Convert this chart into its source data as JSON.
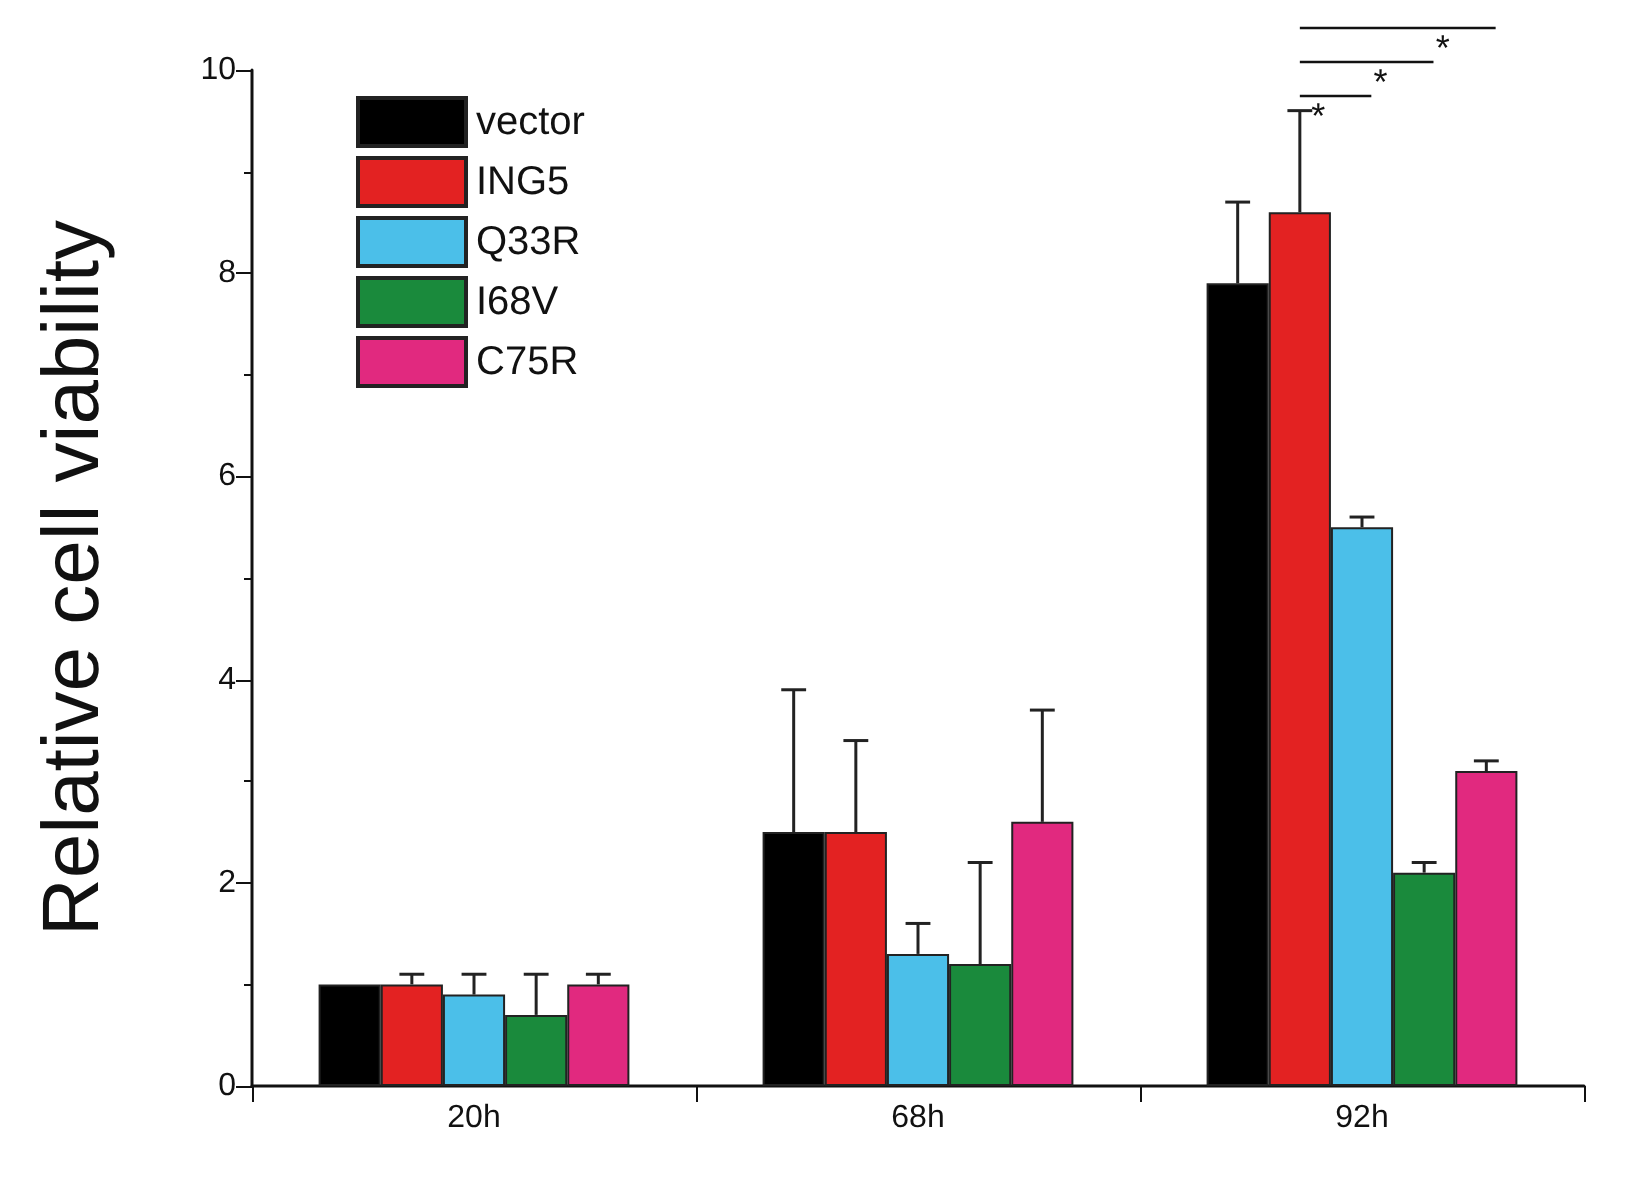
{
  "chart_data": {
    "type": "bar",
    "ylabel": "Relative cell viability",
    "categories": [
      "20h",
      "68h",
      "92h"
    ],
    "series": [
      {
        "name": "vector",
        "color": "#000000",
        "values": [
          1.0,
          2.5,
          7.9
        ],
        "errors": [
          null,
          [
            2.5,
            3.9
          ],
          [
            7.9,
            8.7
          ]
        ]
      },
      {
        "name": "ING5",
        "color": "#e32222",
        "values": [
          1.0,
          2.5,
          8.6
        ],
        "errors": [
          [
            1.0,
            1.1
          ],
          [
            2.5,
            3.4
          ],
          [
            8.6,
            9.6
          ]
        ]
      },
      {
        "name": "Q33R",
        "color": "#4bbfe9",
        "values": [
          0.9,
          1.3,
          5.5
        ],
        "errors": [
          [
            0.9,
            1.1
          ],
          [
            1.3,
            1.6
          ],
          [
            5.5,
            5.6
          ]
        ]
      },
      {
        "name": "I68V",
        "color": "#1a8a3c",
        "values": [
          0.7,
          1.2,
          2.1
        ],
        "errors": [
          [
            0.7,
            1.1
          ],
          [
            1.2,
            2.2
          ],
          [
            2.1,
            2.2
          ]
        ]
      },
      {
        "name": "C75R",
        "color": "#e1297f",
        "values": [
          1.0,
          2.6,
          3.1
        ],
        "errors": [
          [
            1.0,
            1.1
          ],
          [
            2.6,
            3.7
          ],
          [
            3.1,
            3.2
          ]
        ]
      }
    ],
    "annotations": [
      "*",
      "*",
      "*"
    ],
    "ylim": [
      0,
      10
    ],
    "yticks": [
      0,
      2,
      4,
      6,
      8,
      10
    ],
    "legend": "top left",
    "grid": false
  }
}
